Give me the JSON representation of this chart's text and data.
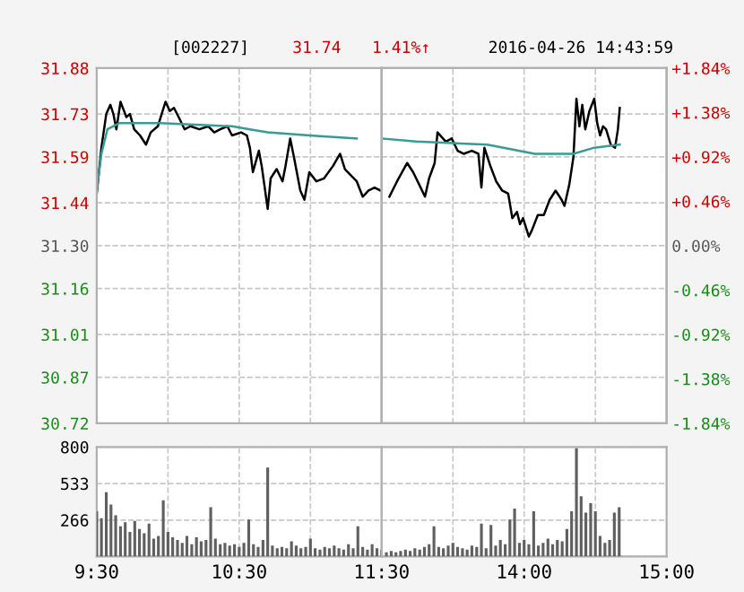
{
  "chart_data": [
    {
      "type": "line",
      "title": "[002227]",
      "annotations": [
        "31.74",
        "1.41%↑",
        "2016-04-26 14:43:59"
      ],
      "series": [
        {
          "color": "#000000",
          "x": [
            9.5,
            9.533,
            9.567,
            9.596,
            9.617,
            9.638,
            9.667,
            9.692,
            9.708,
            9.733,
            9.763,
            9.804,
            9.846,
            9.879,
            9.929,
            9.983,
            10.013,
            10.042,
            10.075,
            10.117,
            10.158,
            10.221,
            10.283,
            10.325,
            10.367,
            10.417,
            10.45,
            10.513,
            10.554,
            10.575,
            10.596,
            10.638,
            10.658,
            10.7,
            10.721,
            10.763,
            10.804,
            10.825,
            10.858,
            10.888,
            10.929,
            10.958,
            10.992,
            11.042,
            11.096,
            11.158,
            11.208,
            11.242,
            11.283,
            11.325,
            11.367,
            11.408,
            11.45,
            11.492
          ],
          "values": [
            31.47,
            31.62,
            31.73,
            31.76,
            31.73,
            31.68,
            31.77,
            31.74,
            31.72,
            31.73,
            31.68,
            31.66,
            31.63,
            31.67,
            31.69,
            31.77,
            31.74,
            31.75,
            31.72,
            31.68,
            31.69,
            31.68,
            31.69,
            31.67,
            31.68,
            31.69,
            31.66,
            31.67,
            31.66,
            31.62,
            31.54,
            31.61,
            31.56,
            31.42,
            31.52,
            31.55,
            31.51,
            31.56,
            31.65,
            31.58,
            31.48,
            31.45,
            31.54,
            31.51,
            31.52,
            31.56,
            31.6,
            31.55,
            31.53,
            31.51,
            31.46,
            31.48,
            31.49,
            31.48
          ]
        },
        {
          "color": "#3a9a96",
          "x": [
            9.5,
            9.533,
            9.575,
            9.658,
            9.95,
            10.45,
            10.575,
            10.7,
            10.992,
            11.325
          ],
          "values": [
            31.48,
            31.6,
            31.68,
            31.7,
            31.7,
            31.69,
            31.68,
            31.67,
            31.66,
            31.65
          ]
        }
      ],
      "xlim": [
        9.5,
        11.5
      ],
      "ylim": [
        30.72,
        31.88
      ],
      "yticks": [
        {
          "value": 30.72,
          "label": "30.72"
        },
        {
          "value": 30.87,
          "label": "30.87"
        },
        {
          "value": 31.01,
          "label": "31.01"
        },
        {
          "value": 31.16,
          "label": "31.16"
        },
        {
          "value": 31.3,
          "label": "31.30"
        },
        {
          "value": 31.44,
          "label": "31.44"
        },
        {
          "value": 31.59,
          "label": "31.59"
        },
        {
          "value": 31.73,
          "label": "31.73"
        },
        {
          "value": 31.88,
          "label": "31.88"
        }
      ],
      "tick_labels": "y",
      "grid": true,
      "marker": "none",
      "line_style": "solid"
    },
    {
      "type": "line",
      "series": [
        {
          "color": "#000000",
          "x": [
            13.054,
            13.108,
            13.179,
            13.221,
            13.263,
            13.304,
            13.333,
            13.372,
            13.392,
            13.45,
            13.492,
            13.533,
            13.575,
            13.633,
            13.679,
            13.7,
            13.721,
            13.742,
            13.763,
            13.804,
            13.846,
            13.888,
            13.917,
            13.95,
            13.971,
            13.992,
            14.033,
            14.054,
            14.096,
            14.138,
            14.179,
            14.221,
            14.263,
            14.283,
            14.317,
            14.346,
            14.367,
            14.388,
            14.408,
            14.429,
            14.458,
            14.492,
            14.513,
            14.533,
            14.554,
            14.575,
            14.608,
            14.638,
            14.658,
            14.671
          ],
          "values": [
            31.46,
            31.51,
            31.57,
            31.54,
            31.5,
            31.46,
            31.52,
            31.57,
            31.67,
            31.64,
            31.65,
            31.61,
            31.6,
            31.61,
            31.6,
            31.49,
            31.62,
            31.59,
            31.56,
            31.51,
            31.48,
            31.47,
            31.39,
            31.41,
            31.37,
            31.39,
            31.33,
            31.35,
            31.4,
            31.4,
            31.45,
            31.48,
            31.45,
            31.43,
            31.5,
            31.59,
            31.78,
            31.69,
            31.76,
            31.68,
            31.74,
            31.78,
            31.7,
            31.66,
            31.69,
            31.68,
            31.63,
            31.62,
            31.68,
            31.75
          ]
        },
        {
          "color": "#3a9a96",
          "x": [
            13.0,
            13.242,
            13.742,
            14.075,
            14.346,
            14.492,
            14.671
          ],
          "values": [
            31.65,
            31.64,
            31.63,
            31.6,
            31.6,
            31.62,
            31.63
          ]
        }
      ],
      "xlim": [
        13,
        15
      ],
      "ylim": [
        30.72,
        31.88
      ],
      "y2lim": [
        -1.84,
        1.84
      ],
      "y2ticks": [
        {
          "value": -1.84,
          "label": "-1.84%"
        },
        {
          "value": -1.38,
          "label": "-1.38%"
        },
        {
          "value": -0.92,
          "label": "-0.92%"
        },
        {
          "value": -0.46,
          "label": "-0.46%"
        },
        {
          "value": 0,
          "label": "0.00%"
        },
        {
          "value": 0.46,
          "label": "+0.46%"
        },
        {
          "value": 0.92,
          "label": "+0.92%"
        },
        {
          "value": 1.38,
          "label": "+1.38%"
        },
        {
          "value": 1.84,
          "label": "+1.84%"
        }
      ],
      "tick_labels": false,
      "grid": true,
      "marker": "none",
      "line_style": "solid"
    },
    {
      "type": "bar",
      "color": "#606060",
      "x": [
        9.5,
        9.533,
        9.567,
        9.6,
        9.633,
        9.667,
        9.7,
        9.733,
        9.767,
        9.8,
        9.833,
        9.867,
        9.9,
        9.933,
        9.967,
        10,
        10.033,
        10.067,
        10.1,
        10.133,
        10.167,
        10.2,
        10.233,
        10.267,
        10.3,
        10.333,
        10.367,
        10.4,
        10.433,
        10.467,
        10.5,
        10.533,
        10.567,
        10.6,
        10.633,
        10.667,
        10.7,
        10.733,
        10.767,
        10.8,
        10.833,
        10.867,
        10.9,
        10.933,
        10.967,
        11,
        11.033,
        11.067,
        11.1,
        11.133,
        11.167,
        11.2,
        11.233,
        11.267,
        11.3,
        11.333,
        11.367,
        11.4,
        11.433,
        11.467,
        11.5
      ],
      "values": [
        330,
        280,
        470,
        380,
        300,
        220,
        250,
        180,
        260,
        200,
        170,
        240,
        130,
        150,
        410,
        180,
        140,
        120,
        100,
        150,
        90,
        140,
        110,
        120,
        360,
        130,
        90,
        100,
        80,
        90,
        70,
        100,
        270,
        90,
        70,
        120,
        650,
        80,
        60,
        70,
        60,
        110,
        80,
        60,
        70,
        130,
        60,
        50,
        70,
        60,
        80,
        60,
        50,
        90,
        60,
        220,
        70,
        50,
        90,
        60,
        50
      ],
      "xlim": [
        9.5,
        11.5
      ],
      "xticks": [
        {
          "value": 9.5,
          "label": "9:30"
        },
        {
          "value": 10,
          "label": null
        },
        {
          "value": 10.5,
          "label": "10:30"
        },
        {
          "value": 11,
          "label": null
        },
        {
          "value": 11.5,
          "label": "11:30"
        }
      ],
      "ylim": [
        0,
        800
      ],
      "yticks": [
        {
          "value": 0,
          "label": null
        },
        {
          "value": 266,
          "label": "266"
        },
        {
          "value": 533,
          "label": "533"
        },
        {
          "value": 800,
          "label": "800"
        }
      ],
      "grid": true
    },
    {
      "type": "bar",
      "color": "#606060",
      "x": [
        13.033,
        13.067,
        13.1,
        13.133,
        13.167,
        13.2,
        13.233,
        13.267,
        13.3,
        13.333,
        13.367,
        13.4,
        13.433,
        13.467,
        13.5,
        13.533,
        13.567,
        13.6,
        13.633,
        13.667,
        13.7,
        13.733,
        13.767,
        13.8,
        13.833,
        13.867,
        13.9,
        13.933,
        13.967,
        14,
        14.033,
        14.067,
        14.1,
        14.133,
        14.167,
        14.2,
        14.233,
        14.267,
        14.3,
        14.333,
        14.367,
        14.4,
        14.433,
        14.467,
        14.5,
        14.533,
        14.567,
        14.6,
        14.633,
        14.667
      ],
      "values": [
        30,
        40,
        30,
        40,
        50,
        40,
        60,
        50,
        70,
        90,
        220,
        70,
        60,
        80,
        100,
        70,
        60,
        50,
        80,
        70,
        240,
        60,
        230,
        80,
        120,
        90,
        270,
        350,
        100,
        120,
        90,
        330,
        80,
        100,
        130,
        90,
        120,
        110,
        200,
        330,
        790,
        440,
        320,
        390,
        330,
        150,
        100,
        120,
        320,
        360
      ],
      "xlim": [
        13,
        15
      ],
      "xticks": [
        {
          "value": 13,
          "label": null
        },
        {
          "value": 13.5,
          "label": null
        },
        {
          "value": 14,
          "label": "14:00"
        },
        {
          "value": 14.5,
          "label": null
        },
        {
          "value": 15,
          "label": "15:00"
        }
      ],
      "ylim": [
        0,
        800
      ],
      "tick_labels": "x",
      "grid": true
    }
  ]
}
